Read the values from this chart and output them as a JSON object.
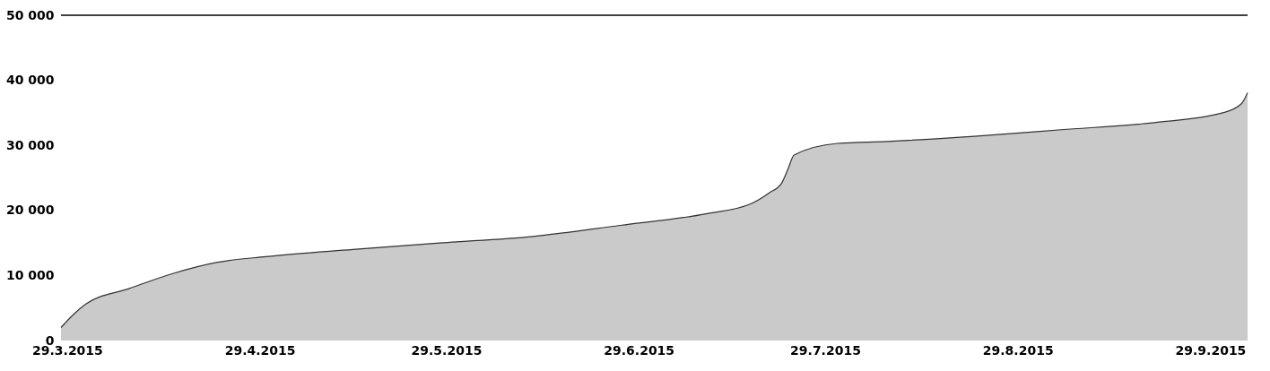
{
  "chart_data": {
    "type": "area",
    "x": [
      "2015-03-28",
      "2015-03-30",
      "2015-04-01",
      "2015-04-08",
      "2015-04-15",
      "2015-04-22",
      "2015-04-30",
      "2015-05-14",
      "2015-05-28",
      "2015-06-12",
      "2015-06-26",
      "2015-07-10",
      "2015-07-17",
      "2015-07-20",
      "2015-07-22",
      "2015-07-23",
      "2015-07-24",
      "2015-07-31",
      "2015-08-08",
      "2015-08-22",
      "2015-09-05",
      "2015-09-20",
      "2015-10-01",
      "2015-10-04",
      "2015-10-05"
    ],
    "series": [
      {
        "color": "#b3b3b3",
        "values": [
          2000,
          4000,
          5600,
          8000,
          10300,
          12000,
          12900,
          14000,
          15000,
          16000,
          17700,
          19500,
          21000,
          22700,
          24200,
          26300,
          28500,
          30300,
          30600,
          31400,
          32400,
          33500,
          35000,
          36400,
          38100
        ]
      }
    ],
    "xlim": [
      "2015-03-28",
      "2015-10-05"
    ],
    "xticks": [
      {
        "value": "2015-03-29",
        "label": "29.3.2015"
      },
      {
        "value": "2015-04-29",
        "label": "29.4.2015"
      },
      {
        "value": "2015-05-29",
        "label": "29.5.2015"
      },
      {
        "value": "2015-06-29",
        "label": "29.6.2015"
      },
      {
        "value": "2015-07-29",
        "label": "29.7.2015"
      },
      {
        "value": "2015-08-29",
        "label": "29.8.2015"
      },
      {
        "value": "2015-09-29",
        "label": "29.9.2015"
      }
    ],
    "ylim": [
      0,
      50000
    ],
    "yticks": [
      {
        "value": 0,
        "label": "0"
      },
      {
        "value": 10000,
        "label": "10 000"
      },
      {
        "value": 20000,
        "label": "20 000"
      },
      {
        "value": 30000,
        "label": "30 000"
      },
      {
        "value": 40000,
        "label": "40 000"
      },
      {
        "value": 50000,
        "label": "50 000"
      }
    ],
    "ref_lines": [
      {
        "axis": "y",
        "value": 50000,
        "color": "#000000"
      }
    ],
    "grid": false
  }
}
